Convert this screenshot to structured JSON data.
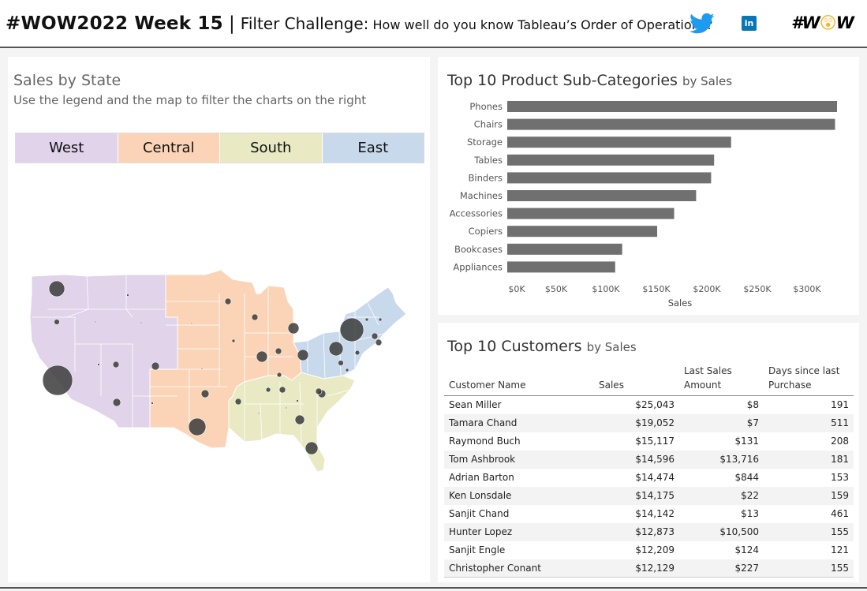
{
  "header": {
    "title_main": "#WOW2022 Week 15",
    "separator": "|",
    "subtitle": "Filter Challenge:",
    "question": "How well do you know Tableau’s Order of Operations?",
    "linkedin_label": "in",
    "logo_text_left": "#W",
    "logo_face": "😲",
    "logo_text_right": "W"
  },
  "sales_by_state": {
    "title": "Sales by State",
    "subtitle": "Use the legend and the map to filter the charts on the right",
    "regions": [
      {
        "label": "West",
        "color": "#e0d3ea"
      },
      {
        "label": "Central",
        "color": "#fbd4b8"
      },
      {
        "label": "South",
        "color": "#e9e9c4"
      },
      {
        "label": "East",
        "color": "#c8d9ec"
      }
    ],
    "bubble_color": "#3b3b3b"
  },
  "subcategories": {
    "title": "Top 10 Product Sub-Categories",
    "by": "by Sales",
    "xlabel": "Sales",
    "bar_color": "#707070"
  },
  "customers": {
    "title": "Top 10 Customers",
    "by": "by Sales",
    "columns": [
      "Customer Name",
      "Sales",
      "Last Sales Amount",
      "Days since last Purchase"
    ],
    "rows": [
      [
        "Sean Miller",
        "$25,043",
        "$8",
        "191"
      ],
      [
        "Tamara Chand",
        "$19,052",
        "$7",
        "511"
      ],
      [
        "Raymond Buch",
        "$15,117",
        "$131",
        "208"
      ],
      [
        "Tom Ashbrook",
        "$14,596",
        "$13,716",
        "181"
      ],
      [
        "Adrian Barton",
        "$14,474",
        "$844",
        "153"
      ],
      [
        "Ken Lonsdale",
        "$14,175",
        "$22",
        "159"
      ],
      [
        "Sanjit Chand",
        "$14,142",
        "$13",
        "461"
      ],
      [
        "Hunter Lopez",
        "$12,873",
        "$10,500",
        "155"
      ],
      [
        "Sanjit Engle",
        "$12,209",
        "$124",
        "121"
      ],
      [
        "Christopher Conant",
        "$12,129",
        "$227",
        "155"
      ]
    ]
  },
  "chart_data": {
    "type": "bar",
    "orientation": "horizontal",
    "categories": [
      "Phones",
      "Chairs",
      "Storage",
      "Tables",
      "Binders",
      "Machines",
      "Accessories",
      "Copiers",
      "Bookcases",
      "Appliances"
    ],
    "values": [
      330000,
      328000,
      224000,
      207000,
      204000,
      189000,
      167000,
      150000,
      115000,
      108000
    ],
    "xticks": [
      "$0K",
      "$50K",
      "$100K",
      "$150K",
      "$200K",
      "$250K",
      "$300K"
    ],
    "xlim": [
      0,
      340000
    ],
    "xlabel": "Sales",
    "grid": false
  }
}
